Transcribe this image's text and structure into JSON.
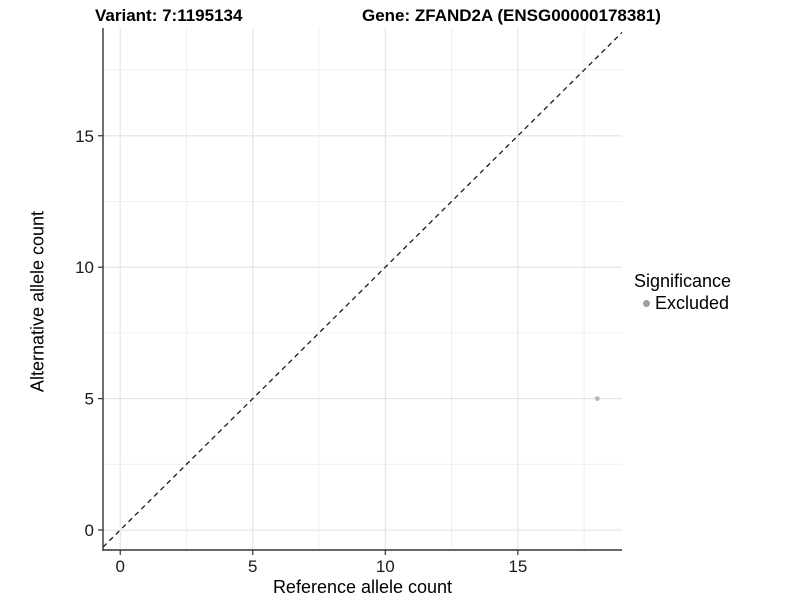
{
  "figure": {
    "title_left": "Variant: 7:1195134",
    "title_right": "Gene: ZFAND2A (ENSG00000178381)"
  },
  "chart_data": {
    "type": "scatter",
    "title": "Variant: 7:1195134   Gene: ZFAND2A (ENSG00000178381)",
    "xlabel": "Reference allele count",
    "ylabel": "Alternative allele count",
    "xlim": [
      -0.65,
      18.93
    ],
    "ylim": [
      -0.76,
      19.1
    ],
    "xticks": [
      0,
      5,
      10,
      15
    ],
    "yticks": [
      0,
      5,
      10,
      15
    ],
    "xticks_minor": [
      2.5,
      7.5,
      12.5,
      17.5
    ],
    "yticks_minor": [
      2.5,
      7.5,
      12.5,
      17.5
    ],
    "grid": "major+minor",
    "series": [
      {
        "name": "Excluded",
        "marker": "circle",
        "color": "#b9b9b9",
        "points": [
          {
            "x": 18,
            "y": 5
          }
        ]
      }
    ],
    "reference_line": {
      "type": "identity y=x",
      "style": "dashed",
      "color": "#1a1a1a"
    },
    "legend": {
      "title": "Significance",
      "position": "right",
      "items": [
        {
          "label": "Excluded",
          "color": "#9e9e9e",
          "marker": "circle"
        }
      ]
    }
  },
  "colors": {
    "background": "#ffffff",
    "axis_line": "#333333",
    "grid_major": "#e4e4e4",
    "grid_minor": "#f0f0f0",
    "tick_label": "#1a1a1a",
    "point": "#b9b9b9",
    "legend_marker": "#9e9e9e"
  }
}
